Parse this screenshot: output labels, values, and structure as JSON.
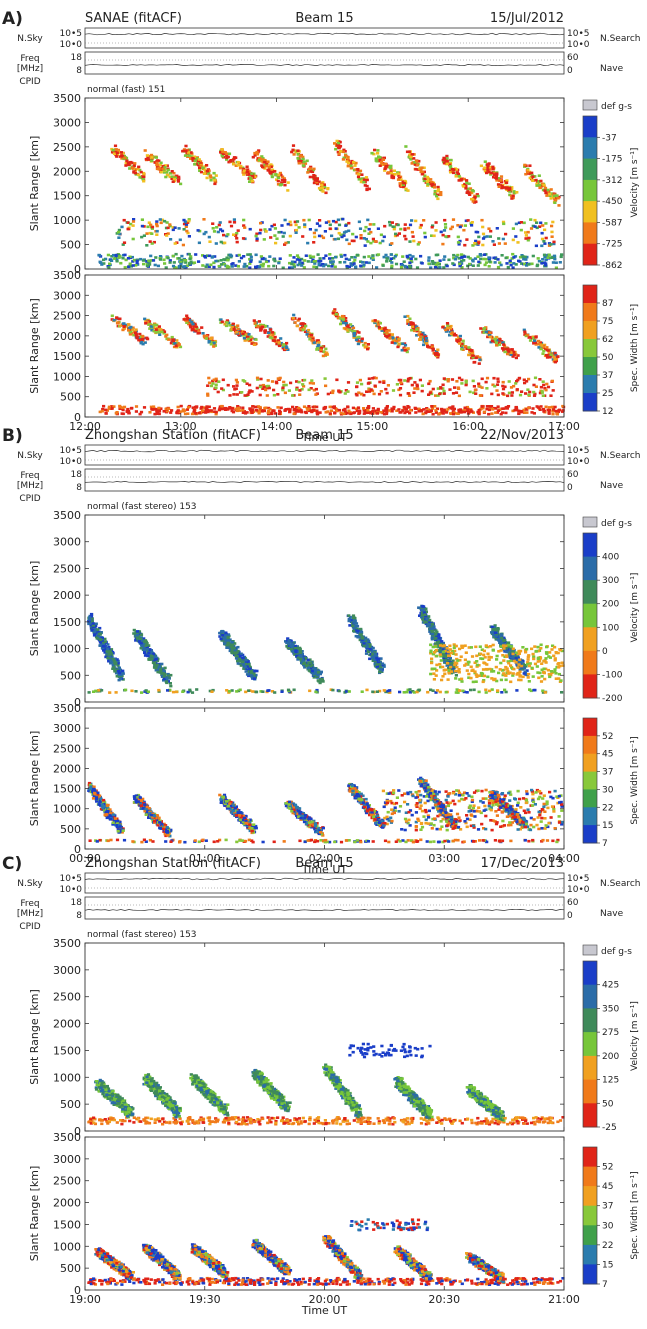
{
  "chart_data": [
    {
      "type": "heatmap",
      "panel_label": "A)",
      "title_left": "SANAE (fitACF)",
      "title_center": "Beam 15",
      "title_right": "15/Jul/2012",
      "strip_nsky": {
        "label": "N.Sky",
        "ticks_left": [
          "10•5",
          "10•0"
        ],
        "ticks_right": [
          "10•5",
          "10•0"
        ],
        "right_label": "N.Search"
      },
      "strip_freq": {
        "label_top": "Freq",
        "label_bot": "[MHz]",
        "ticks_left": [
          "18",
          "8"
        ],
        "ticks_right": [
          "60",
          "0"
        ],
        "right_label": "Nave"
      },
      "cpid_label": "CPID",
      "mode": "normal (fast) 151",
      "xlabel": "Time UT",
      "x_ticks": [
        "12:00",
        "13:00",
        "14:00",
        "15:00",
        "16:00",
        "17:00"
      ],
      "ylabel": "Slant Range [km]",
      "y_ticks": [
        "0",
        "500",
        "1000",
        "1500",
        "2000",
        "2500",
        "3000",
        "3500"
      ],
      "ylim": [
        0,
        3500
      ],
      "velocity": {
        "colorbar_title": "Velocity [m s⁻¹]",
        "gs_label": "def g-s",
        "levels": [
          "-37",
          "-175",
          "-312",
          "-450",
          "-587",
          "-725",
          "-862"
        ],
        "colors": [
          "#1a3ec8",
          "#2b7cae",
          "#3f9a5a",
          "#77c63a",
          "#f0c020",
          "#f07a1a",
          "#e02418"
        ]
      },
      "width": {
        "colorbar_title": "Spec. Width [m s⁻¹]",
        "levels": [
          "87",
          "75",
          "62",
          "50",
          "37",
          "25",
          "12"
        ],
        "colors": [
          "#e02418",
          "#f07a1a",
          "#f0a020",
          "#88c83a",
          "#3fa04a",
          "#2b7cae",
          "#1a3ec8"
        ]
      }
    },
    {
      "type": "heatmap",
      "panel_label": "B)",
      "title_left": "Zhongshan Station (fitACF)",
      "title_center": "Beam 15",
      "title_right": "22/Nov/2013",
      "strip_nsky": {
        "label": "N.Sky",
        "ticks_left": [
          "10•5",
          "10•0"
        ],
        "ticks_right": [
          "10•5",
          "10•0"
        ],
        "right_label": "N.Search"
      },
      "strip_freq": {
        "label_top": "Freq",
        "label_bot": "[MHz]",
        "ticks_left": [
          "18",
          "8"
        ],
        "ticks_right": [
          "60",
          "0"
        ],
        "right_label": "Nave"
      },
      "cpid_label": "CPID",
      "mode": "normal (fast stereo) 153",
      "xlabel": "Time UT",
      "x_ticks": [
        "00:00",
        "01:00",
        "02:00",
        "03:00",
        "04:00"
      ],
      "ylabel": "Slant Range [km]",
      "y_ticks": [
        "0",
        "500",
        "1000",
        "1500",
        "2000",
        "2500",
        "3000",
        "3500"
      ],
      "ylim": [
        0,
        3500
      ],
      "velocity": {
        "colorbar_title": "Velocity [m s⁻¹]",
        "gs_label": "def g-s",
        "levels": [
          "400",
          "300",
          "200",
          "100",
          "0",
          "-100",
          "-200"
        ],
        "colors": [
          "#1a3ec8",
          "#2b6ca8",
          "#3f8a5a",
          "#77c63a",
          "#f0a020",
          "#f07a1a",
          "#e02418"
        ]
      },
      "width": {
        "colorbar_title": "Spec. Width [m s⁻¹]",
        "levels": [
          "52",
          "45",
          "37",
          "30",
          "22",
          "15",
          "7"
        ],
        "colors": [
          "#e02418",
          "#f07a1a",
          "#f0a020",
          "#88c83a",
          "#3fa04a",
          "#2b7cae",
          "#1a3ec8"
        ]
      }
    },
    {
      "type": "heatmap",
      "panel_label": "C)",
      "title_left": "Zhongshan Station (fitACF)",
      "title_center": "Beam 15",
      "title_right": "17/Dec/2013",
      "strip_nsky": {
        "label": "N.Sky",
        "ticks_left": [
          "10•5",
          "10•0"
        ],
        "ticks_right": [
          "10•5",
          "10•0"
        ],
        "right_label": "N.Search"
      },
      "strip_freq": {
        "label_top": "Freq",
        "label_bot": "[MHz]",
        "ticks_left": [
          "18",
          "8"
        ],
        "ticks_right": [
          "60",
          "0"
        ],
        "right_label": "Nave"
      },
      "cpid_label": "CPID",
      "mode": "normal (fast stereo) 153",
      "xlabel": "Time UT",
      "x_ticks": [
        "19:00",
        "19:30",
        "20:00",
        "20:30",
        "21:00"
      ],
      "ylabel": "Slant Range [km]",
      "y_ticks": [
        "0",
        "500",
        "1000",
        "1500",
        "2000",
        "2500",
        "3000",
        "3500"
      ],
      "ylim": [
        0,
        3500
      ],
      "velocity": {
        "colorbar_title": "Velocity [m s⁻¹]",
        "gs_label": "def g-s",
        "levels": [
          "425",
          "350",
          "275",
          "200",
          "125",
          "50",
          "-25"
        ],
        "colors": [
          "#1a3ec8",
          "#2b6ca8",
          "#3f8a5a",
          "#77c63a",
          "#f0a020",
          "#f07a1a",
          "#e02418"
        ]
      },
      "width": {
        "colorbar_title": "Spec. Width [m s⁻¹]",
        "levels": [
          "52",
          "45",
          "37",
          "30",
          "22",
          "15",
          "7"
        ],
        "colors": [
          "#e02418",
          "#f07a1a",
          "#f0a020",
          "#88c83a",
          "#3fa04a",
          "#2b7cae",
          "#1a3ec8"
        ]
      }
    }
  ]
}
